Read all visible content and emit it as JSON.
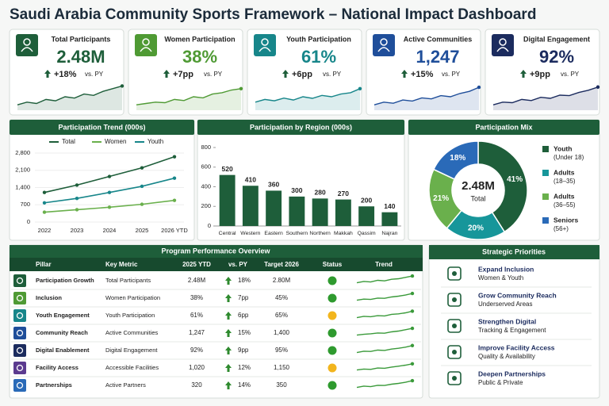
{
  "title": "Saudi Arabia Community Sports Framework – National Impact Dashboard",
  "vs_label": "vs. PY",
  "kpis": [
    {
      "label": "Total Participants",
      "value": "2.48M",
      "change": "+18%",
      "color": "#1e5e3a",
      "trend": [
        2,
        3,
        2.5,
        4,
        3.5,
        5,
        4.5,
        6,
        5.5,
        7,
        8,
        9
      ]
    },
    {
      "label": "Women Participation",
      "value": "38%",
      "change": "+7pp",
      "color": "#4f9a34",
      "trend": [
        2,
        2.5,
        3,
        2.8,
        4,
        3.6,
        5,
        4.6,
        6,
        6.5,
        7.5,
        8
      ]
    },
    {
      "label": "Youth Participation",
      "value": "61%",
      "change": "+6pp",
      "color": "#17868a",
      "trend": [
        3,
        4,
        3.5,
        4.5,
        3.8,
        5,
        4.4,
        5.5,
        5,
        6,
        6.5,
        8
      ]
    },
    {
      "label": "Active Communities",
      "value": "1,247",
      "change": "+15%",
      "color": "#1f4e9a",
      "trend": [
        2,
        3,
        2.6,
        3.8,
        3.4,
        4.6,
        4.2,
        5.4,
        5,
        6.2,
        7,
        8.5
      ]
    },
    {
      "label": "Digital Engagement",
      "value": "92%",
      "change": "+9pp",
      "color": "#1b2b5e",
      "trend": [
        2,
        3,
        2.8,
        4,
        3.6,
        4.8,
        4.4,
        5.6,
        5.4,
        6.6,
        7.4,
        8.6
      ]
    }
  ],
  "chart_data": [
    {
      "type": "line",
      "title": "Participation Trend (000s)",
      "categories": [
        "2022",
        "2023",
        "2024",
        "2025",
        "2026 YTD"
      ],
      "series": [
        {
          "name": "Total",
          "color": "#1e5e3a",
          "values": [
            1200,
            1500,
            1850,
            2200,
            2650
          ]
        },
        {
          "name": "Women",
          "color": "#6ab04c",
          "values": [
            400,
            500,
            600,
            720,
            880
          ]
        },
        {
          "name": "Youth",
          "color": "#17868a",
          "values": [
            780,
            960,
            1200,
            1450,
            1780
          ]
        }
      ],
      "ylim": [
        0,
        2800
      ],
      "yticks": [
        0,
        700,
        {
          "value": 1400,
          "label": "1,400"
        },
        {
          "value": 2100,
          "label": "2,100"
        },
        {
          "value": 2800,
          "label": "2,800"
        }
      ]
    },
    {
      "type": "bar",
      "title": "Participation by Region (000s)",
      "color": "#1e5e3a",
      "categories": [
        "Central",
        "Western",
        "Eastern",
        "Southern",
        "Northern",
        "Makkah",
        "Qassim",
        "Najran"
      ],
      "values": [
        520,
        410,
        360,
        300,
        280,
        270,
        200,
        140
      ],
      "ylim": [
        0,
        800
      ],
      "yticks": [
        0,
        200,
        400,
        600,
        800
      ]
    },
    {
      "type": "pie",
      "title": "Participation Mix",
      "center_value": "2.48M",
      "center_label": "Total",
      "categories": [
        "Youth",
        "Adults",
        "Adults",
        "Seniors"
      ],
      "sublabels": [
        "(Under 18)",
        "(18–35)",
        "(36–55)",
        "(56+)"
      ],
      "values": [
        41,
        20,
        21,
        18
      ],
      "value_labels": [
        "41%",
        "20%",
        "21%",
        "18%"
      ],
      "colors": [
        "#1e5e3a",
        "#17969a",
        "#6ab04c",
        "#2a6ab8"
      ]
    }
  ],
  "table": {
    "title": "Program Performance Overview",
    "columns": [
      "Pillar",
      "Key Metric",
      "2025 YTD",
      "vs. PY",
      "Target 2026",
      "Status",
      "Trend"
    ],
    "rows": [
      {
        "pillar": "Participation Growth",
        "metric": "Total Participants",
        "ytd": "2.48M",
        "vs": "18%",
        "target": "2.80M",
        "status": "#2e9a2e",
        "color": "#1e5e3a",
        "trend": [
          2,
          3,
          2.6,
          3.8,
          3.4,
          4.6,
          5,
          6,
          7
        ]
      },
      {
        "pillar": "Inclusion",
        "metric": "Women Participation",
        "ytd": "38%",
        "vs": "7pp",
        "target": "45%",
        "status": "#2e9a2e",
        "color": "#4f9a34",
        "trend": [
          2,
          2.8,
          2.6,
          3.6,
          3.4,
          4.4,
          5,
          5.8,
          7
        ]
      },
      {
        "pillar": "Youth Engagement",
        "metric": "Youth Participation",
        "ytd": "61%",
        "vs": "6pp",
        "target": "65%",
        "status": "#f2b51d",
        "color": "#17868a",
        "trend": [
          2,
          3,
          2.7,
          3.5,
          3.3,
          4.5,
          4.8,
          5.6,
          6.8
        ]
      },
      {
        "pillar": "Community Reach",
        "metric": "Active Communities",
        "ytd": "1,247",
        "vs": "15%",
        "target": "1,400",
        "status": "#2e9a2e",
        "color": "#1f4e9a",
        "trend": [
          2,
          2.6,
          3,
          3.6,
          3.4,
          4.4,
          5,
          6,
          7
        ]
      },
      {
        "pillar": "Digital Enablement",
        "metric": "Digital Engagement",
        "ytd": "92%",
        "vs": "9pp",
        "target": "95%",
        "status": "#2e9a2e",
        "color": "#1b2b5e",
        "trend": [
          2,
          3,
          2.8,
          3.8,
          3.6,
          4.6,
          5.2,
          6,
          7.2
        ]
      },
      {
        "pillar": "Facility Access",
        "metric": "Accessible Facilities",
        "ytd": "1,020",
        "vs": "12%",
        "target": "1,150",
        "status": "#f2b51d",
        "color": "#5b3a8f",
        "trend": [
          2,
          2.7,
          2.5,
          3.5,
          3.3,
          4.2,
          4.8,
          5.6,
          6.6
        ]
      },
      {
        "pillar": "Partnerships",
        "metric": "Active Partners",
        "ytd": "320",
        "vs": "14%",
        "target": "350",
        "status": "#2e9a2e",
        "color": "#2a6ab8",
        "trend": [
          2,
          3,
          2.6,
          3.6,
          3.5,
          4.4,
          5,
          5.8,
          7
        ]
      }
    ]
  },
  "priorities": {
    "title": "Strategic Priorities",
    "items": [
      {
        "title": "Expand Inclusion",
        "sub": "Women & Youth"
      },
      {
        "title": "Grow Community Reach",
        "sub": "Underserved Areas"
      },
      {
        "title": "Strengthen Digital",
        "sub": "Tracking & Engagement"
      },
      {
        "title": "Improve Facility Access",
        "sub": "Quality & Availability"
      },
      {
        "title": "Deepen Partnerships",
        "sub": "Public & Private"
      }
    ]
  }
}
